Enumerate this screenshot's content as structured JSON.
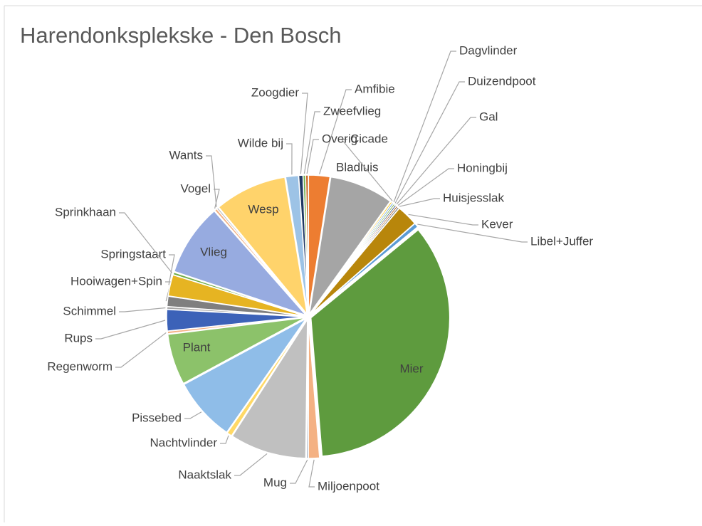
{
  "chart_data": {
    "type": "pie",
    "title": "Harendonksplekske - Den Bosch",
    "categories": [
      "Amfibie",
      "Bladluis",
      "Cicade",
      "Dagvlinder",
      "Duizendpoot",
      "Gal",
      "Honingbij",
      "Huisjesslak",
      "Kever",
      "Libel+Juffer",
      "Mier",
      "Miljoenpoot",
      "Mug",
      "Naaktslak",
      "Nachtvlinder",
      "Pissebed",
      "Plant",
      "Regenworm",
      "Rups",
      "Schimmel",
      "Hooiwagen+Spin",
      "Springstaart",
      "Sprinkhaan",
      "Vlieg",
      "Vogel",
      "Wants",
      "Wesp",
      "Wilde bij",
      "Zoogdier",
      "Zweefvlieg",
      "Overig"
    ],
    "values": [
      2.5,
      7.5,
      0.2,
      0.2,
      0.2,
      0.2,
      0.2,
      0.2,
      2.5,
      0.5,
      35,
      1.3,
      0.2,
      9,
      0.6,
      7.5,
      6,
      0.3,
      2.5,
      0.3,
      1.2,
      2.5,
      0.3,
      8.5,
      0.3,
      0.2,
      8.5,
      1.5,
      0.5,
      0.3,
      0.3
    ],
    "colors": [
      "#ed7d31",
      "#a5a5a5",
      "#ffc000",
      "#5b9bd5",
      "#70ad47",
      "#264478",
      "#9e480e",
      "#636363",
      "#b8860b",
      "#5b9bd5",
      "#5e9b3e",
      "#f4b183",
      "#8497b0",
      "#c0c0c0",
      "#ffd966",
      "#8fbde8",
      "#8cc26a",
      "#f4b183",
      "#3c62b8",
      "#a5a5a5",
      "#7f7f7f",
      "#e6b422",
      "#70ad47",
      "#97abe0",
      "#f4b183",
      "#a5a5a5",
      "#ffd36b",
      "#9dc3e6",
      "#1f3864",
      "#70ad47",
      "#c55a11"
    ]
  }
}
